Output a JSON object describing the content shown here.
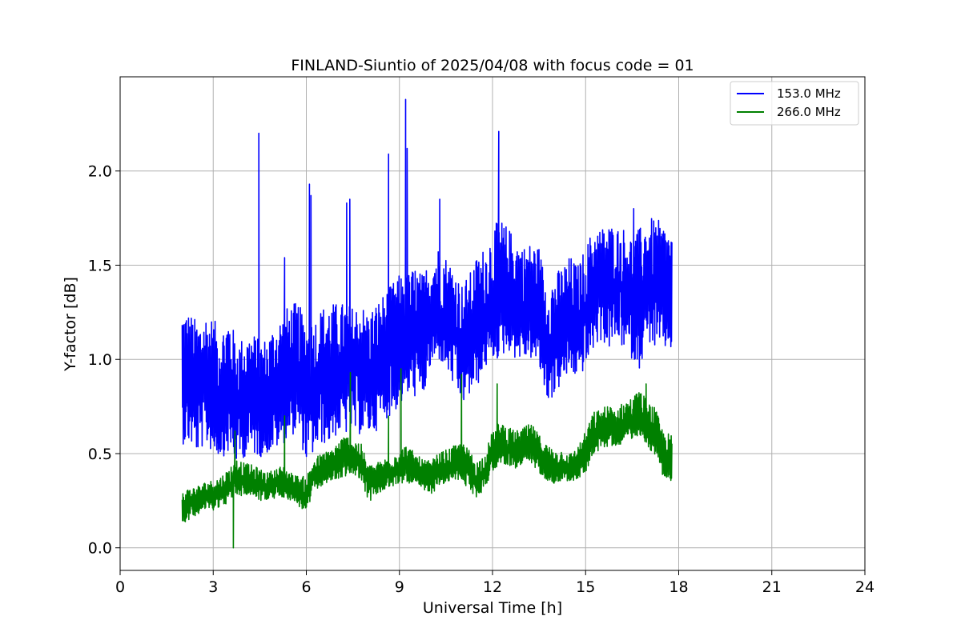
{
  "chart_data": {
    "type": "line",
    "title": "FINLAND-Siuntio of 2025/04/08 with focus code = 01",
    "xlabel": "Universal Time [h]",
    "ylabel": "Y-factor [dB]",
    "xlim": [
      0,
      24
    ],
    "ylim": [
      -0.12,
      2.5
    ],
    "xticks": [
      "0",
      "3",
      "6",
      "9",
      "12",
      "15",
      "18",
      "21",
      "24"
    ],
    "yticks": [
      "0.0",
      "0.5",
      "1.0",
      "1.5",
      "2.0"
    ],
    "grid": true,
    "legend_position": "top-right",
    "series": [
      {
        "name": "153.0 MHz",
        "color": "#0000ff",
        "x": [
          2.0,
          2.25,
          2.5,
          2.75,
          3.0,
          3.25,
          3.5,
          3.75,
          4.0,
          4.25,
          4.5,
          4.75,
          5.0,
          5.25,
          5.5,
          5.75,
          6.0,
          6.25,
          6.5,
          6.75,
          7.0,
          7.25,
          7.5,
          7.75,
          8.0,
          8.25,
          8.5,
          8.75,
          9.0,
          9.25,
          9.5,
          9.75,
          10.0,
          10.25,
          10.5,
          10.75,
          11.0,
          11.25,
          11.5,
          11.75,
          12.0,
          12.25,
          12.5,
          12.75,
          13.0,
          13.25,
          13.5,
          13.75,
          14.0,
          14.25,
          14.5,
          14.75,
          15.0,
          15.25,
          15.5,
          15.75,
          16.0,
          16.25,
          16.5,
          16.75,
          17.0,
          17.25,
          17.5,
          17.75
        ],
        "mean": [
          0.9,
          0.85,
          0.82,
          0.86,
          0.8,
          0.78,
          0.83,
          0.75,
          0.78,
          0.8,
          0.76,
          0.78,
          0.82,
          0.85,
          0.9,
          0.92,
          0.8,
          0.82,
          0.88,
          0.9,
          0.92,
          0.95,
          0.92,
          0.95,
          0.9,
          0.95,
          1.0,
          1.05,
          1.08,
          1.1,
          1.12,
          1.1,
          1.2,
          1.25,
          1.2,
          1.15,
          1.05,
          1.1,
          1.15,
          1.2,
          1.25,
          1.3,
          1.35,
          1.3,
          1.28,
          1.3,
          1.25,
          1.05,
          1.1,
          1.15,
          1.2,
          1.15,
          1.25,
          1.35,
          1.4,
          1.38,
          1.4,
          1.35,
          1.3,
          1.3,
          1.38,
          1.35,
          1.35,
          1.32
        ],
        "low": [
          0.55,
          0.55,
          0.5,
          0.55,
          0.5,
          0.48,
          0.5,
          0.45,
          0.48,
          0.5,
          0.48,
          0.5,
          0.52,
          0.55,
          0.6,
          0.6,
          0.45,
          0.5,
          0.55,
          0.55,
          0.6,
          0.6,
          0.6,
          0.6,
          0.6,
          0.62,
          0.68,
          0.7,
          0.75,
          0.8,
          0.8,
          0.78,
          0.95,
          1.0,
          0.95,
          0.85,
          0.75,
          0.8,
          0.85,
          0.95,
          1.0,
          1.0,
          1.05,
          1.0,
          1.0,
          1.0,
          0.95,
          0.78,
          0.8,
          0.88,
          0.92,
          0.9,
          0.95,
          1.05,
          1.1,
          1.05,
          1.1,
          1.05,
          1.0,
          0.95,
          1.1,
          1.05,
          1.05,
          1.05
        ],
        "high": [
          1.28,
          1.25,
          1.2,
          1.25,
          1.22,
          1.15,
          1.25,
          1.1,
          1.12,
          1.15,
          1.1,
          1.12,
          1.2,
          1.25,
          1.3,
          1.3,
          1.2,
          1.22,
          1.28,
          1.3,
          1.3,
          1.3,
          1.28,
          1.3,
          1.25,
          1.3,
          1.35,
          1.4,
          1.45,
          1.45,
          1.5,
          1.45,
          1.55,
          1.6,
          1.55,
          1.5,
          1.4,
          1.45,
          1.55,
          1.6,
          1.7,
          1.75,
          1.7,
          1.65,
          1.6,
          1.62,
          1.6,
          1.4,
          1.45,
          1.5,
          1.55,
          1.5,
          1.6,
          1.7,
          1.7,
          1.72,
          1.7,
          1.7,
          1.65,
          1.7,
          1.75,
          1.75,
          1.72,
          1.68
        ],
        "spikes": [
          [
            4.47,
            2.2
          ],
          [
            5.3,
            1.54
          ],
          [
            6.1,
            1.93
          ],
          [
            6.15,
            1.87
          ],
          [
            7.3,
            1.83
          ],
          [
            7.4,
            1.85
          ],
          [
            8.65,
            2.09
          ],
          [
            9.2,
            2.38
          ],
          [
            9.25,
            2.12
          ],
          [
            10.3,
            1.85
          ],
          [
            12.2,
            2.21
          ],
          [
            16.55,
            1.8
          ]
        ]
      },
      {
        "name": "266.0 MHz",
        "color": "#008000",
        "x": [
          2.0,
          2.25,
          2.5,
          2.75,
          3.0,
          3.25,
          3.5,
          3.75,
          4.0,
          4.25,
          4.5,
          4.75,
          5.0,
          5.25,
          5.5,
          5.75,
          6.0,
          6.25,
          6.5,
          6.75,
          7.0,
          7.25,
          7.5,
          7.75,
          8.0,
          8.25,
          8.5,
          8.75,
          9.0,
          9.25,
          9.5,
          9.75,
          10.0,
          10.25,
          10.5,
          10.75,
          11.0,
          11.25,
          11.5,
          11.75,
          12.0,
          12.25,
          12.5,
          12.75,
          13.0,
          13.25,
          13.5,
          13.75,
          14.0,
          14.25,
          14.5,
          14.75,
          15.0,
          15.25,
          15.5,
          15.75,
          16.0,
          16.25,
          16.5,
          16.75,
          17.0,
          17.25,
          17.5,
          17.75
        ],
        "mean": [
          0.22,
          0.23,
          0.25,
          0.27,
          0.28,
          0.3,
          0.32,
          0.38,
          0.35,
          0.35,
          0.33,
          0.32,
          0.33,
          0.34,
          0.32,
          0.3,
          0.28,
          0.38,
          0.4,
          0.42,
          0.45,
          0.48,
          0.47,
          0.45,
          0.34,
          0.36,
          0.38,
          0.4,
          0.42,
          0.44,
          0.4,
          0.38,
          0.38,
          0.4,
          0.42,
          0.44,
          0.46,
          0.42,
          0.36,
          0.4,
          0.5,
          0.55,
          0.52,
          0.5,
          0.52,
          0.54,
          0.5,
          0.45,
          0.42,
          0.43,
          0.42,
          0.44,
          0.5,
          0.6,
          0.62,
          0.63,
          0.62,
          0.65,
          0.67,
          0.7,
          0.65,
          0.6,
          0.5,
          0.48
        ],
        "low": [
          0.13,
          0.15,
          0.18,
          0.2,
          0.2,
          0.22,
          0.24,
          0.28,
          0.27,
          0.28,
          0.25,
          0.25,
          0.26,
          0.27,
          0.25,
          0.22,
          0.18,
          0.3,
          0.33,
          0.35,
          0.36,
          0.38,
          0.38,
          0.37,
          0.24,
          0.28,
          0.3,
          0.32,
          0.34,
          0.35,
          0.32,
          0.3,
          0.28,
          0.32,
          0.34,
          0.36,
          0.36,
          0.3,
          0.26,
          0.32,
          0.4,
          0.45,
          0.44,
          0.42,
          0.44,
          0.44,
          0.4,
          0.36,
          0.34,
          0.36,
          0.35,
          0.36,
          0.4,
          0.5,
          0.52,
          0.54,
          0.54,
          0.56,
          0.58,
          0.6,
          0.54,
          0.48,
          0.38,
          0.32
        ],
        "high": [
          0.3,
          0.32,
          0.33,
          0.35,
          0.36,
          0.38,
          0.42,
          0.48,
          0.45,
          0.44,
          0.42,
          0.4,
          0.42,
          0.44,
          0.4,
          0.38,
          0.38,
          0.48,
          0.5,
          0.52,
          0.56,
          0.6,
          0.58,
          0.56,
          0.44,
          0.45,
          0.47,
          0.5,
          0.52,
          0.55,
          0.5,
          0.47,
          0.46,
          0.5,
          0.52,
          0.54,
          0.56,
          0.52,
          0.46,
          0.5,
          0.62,
          0.68,
          0.64,
          0.62,
          0.64,
          0.66,
          0.6,
          0.55,
          0.52,
          0.52,
          0.5,
          0.54,
          0.62,
          0.72,
          0.74,
          0.76,
          0.74,
          0.78,
          0.8,
          0.84,
          0.78,
          0.74,
          0.62,
          0.6
        ],
        "spikes": [
          [
            3.65,
            0.0
          ],
          [
            3.7,
            0.62
          ],
          [
            5.3,
            0.7
          ],
          [
            7.42,
            0.93
          ],
          [
            8.65,
            0.7
          ],
          [
            9.05,
            0.95
          ],
          [
            11.0,
            0.92
          ],
          [
            12.15,
            0.87
          ],
          [
            16.95,
            0.87
          ]
        ]
      }
    ]
  }
}
